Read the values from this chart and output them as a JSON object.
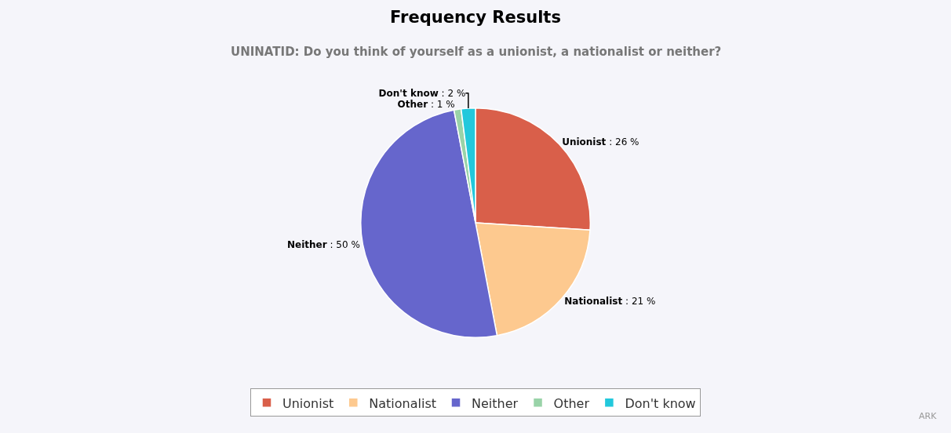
{
  "chart_data": {
    "type": "pie",
    "title": "Frequency Results",
    "subtitle": "UNINATID: Do you think of yourself as a unionist, a nationalist or neither?",
    "categories": [
      "Unionist",
      "Nationalist",
      "Neither",
      "Other",
      "Don't know"
    ],
    "values": [
      26,
      21,
      50,
      1,
      2
    ],
    "value_labels": [
      ": 26 %",
      ": 21 %",
      ": 50 %",
      ": 1 %",
      ": 2 %"
    ],
    "colors": [
      "#d95f4a",
      "#fdc98f",
      "#6666cc",
      "#99d3a8",
      "#22c8dc"
    ],
    "legend": "bottom",
    "annotations": [
      "ARK"
    ]
  }
}
